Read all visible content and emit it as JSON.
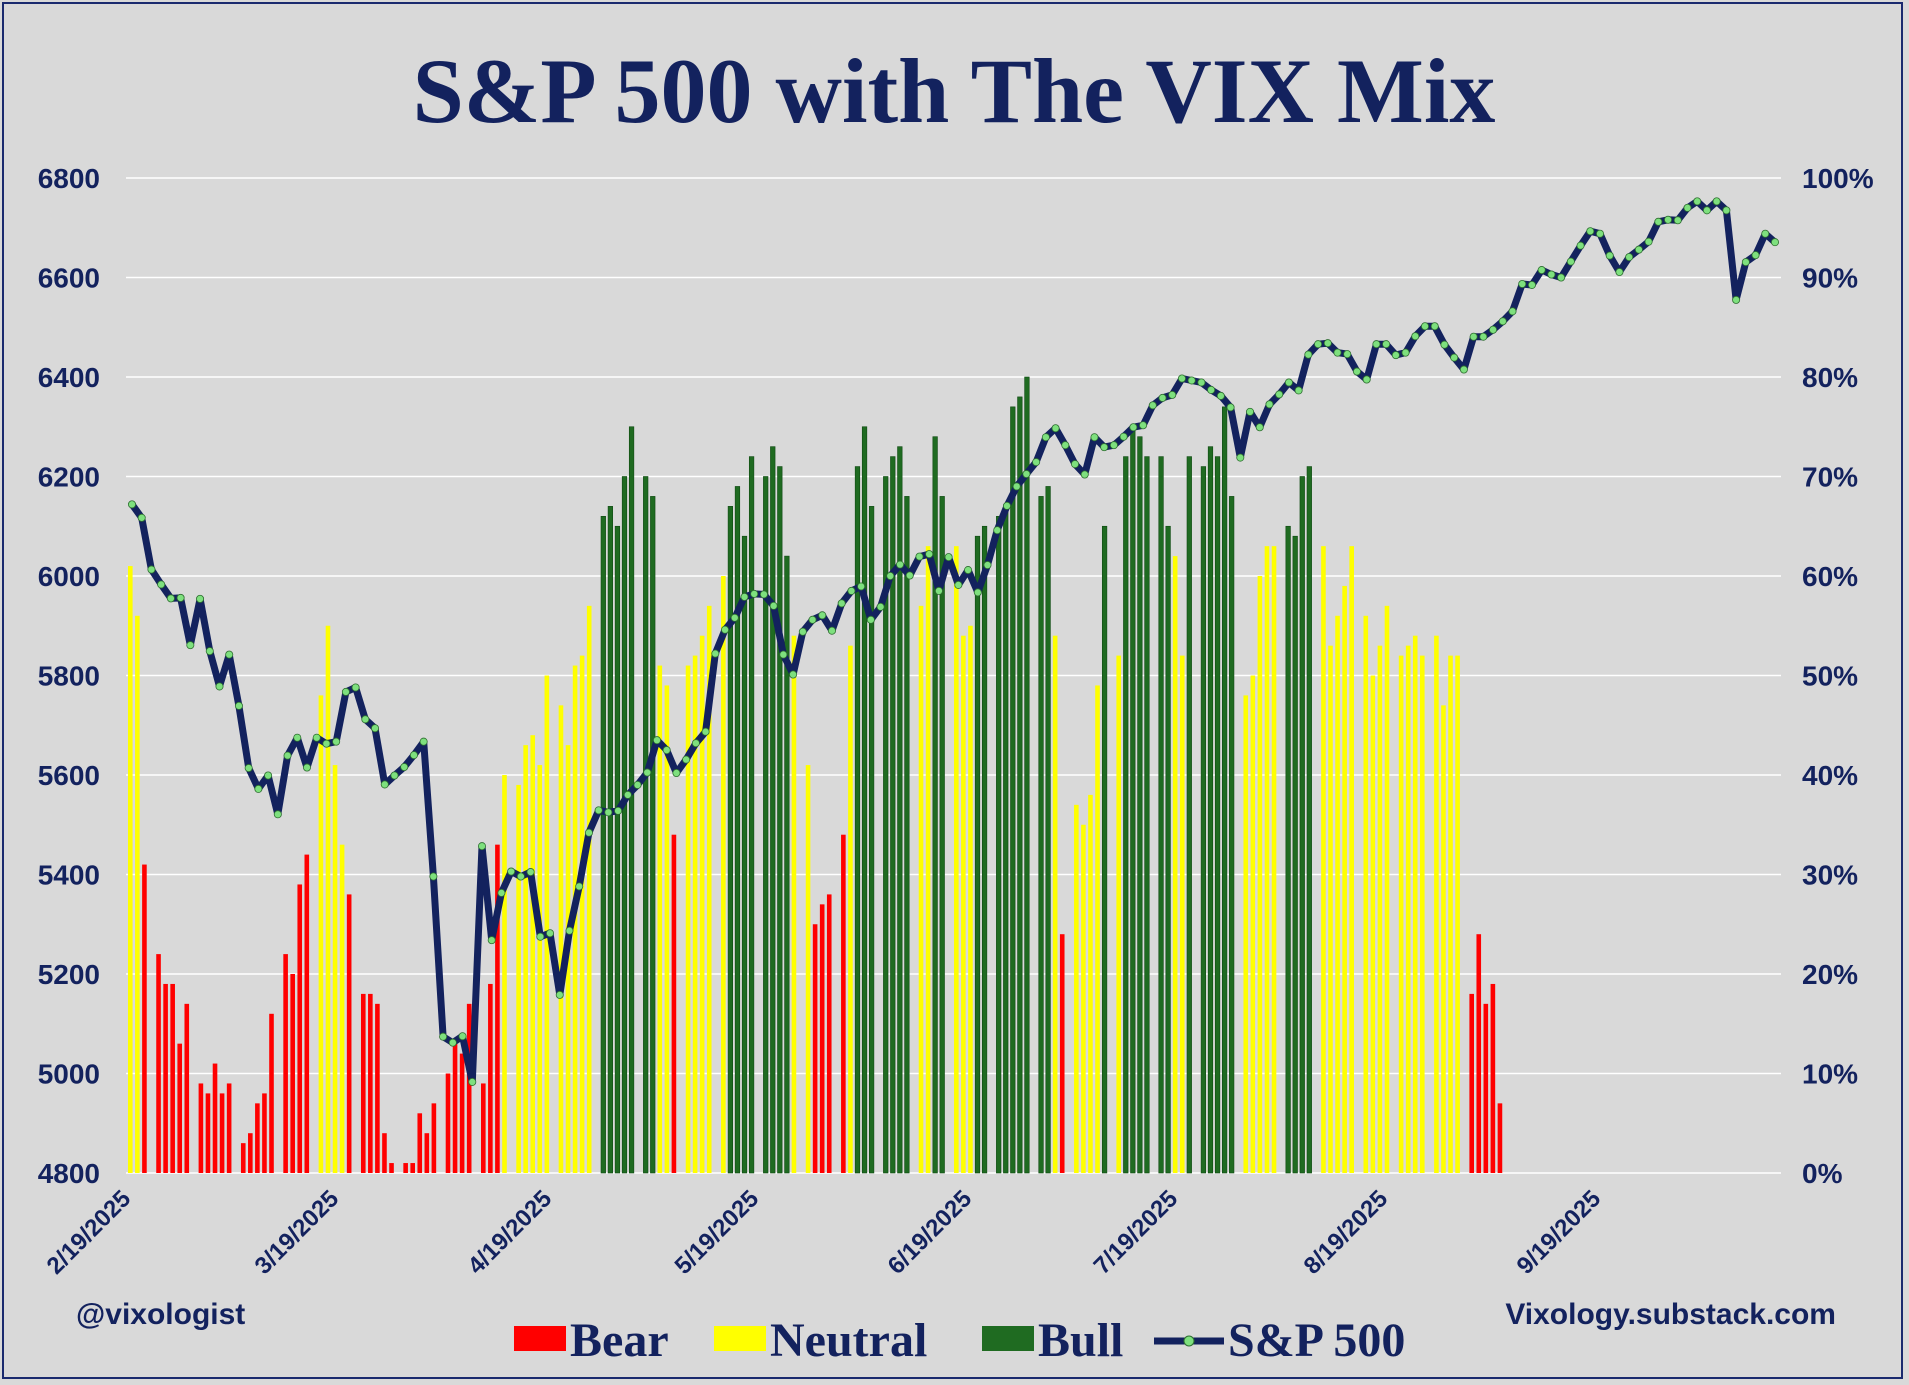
{
  "chart_data": {
    "type": "bar+line",
    "title": "S&P 500 with The VIX Mix",
    "y_left": {
      "range": [
        4800,
        6800
      ],
      "ticks": [
        "4800",
        "5000",
        "5200",
        "5400",
        "5600",
        "5800",
        "6000",
        "6200",
        "6400",
        "6600",
        "6800"
      ]
    },
    "y_right": {
      "range": [
        0,
        100
      ],
      "ticks": [
        "0%",
        "10%",
        "20%",
        "30%",
        "40%",
        "50%",
        "60%",
        "70%",
        "80%",
        "90%",
        "100%"
      ]
    },
    "x_ticks": [
      "2/19/2025",
      "3/19/2025",
      "4/19/2025",
      "5/19/2025",
      "6/19/2025",
      "7/19/2025",
      "8/19/2025",
      "9/19/2025"
    ],
    "legend": [
      "Bear",
      "Neutral",
      "Bull",
      "S&P 500"
    ],
    "colors": {
      "Bear": "#ff0000",
      "Neutral": "#ffff00",
      "Bull": "#1f6b21",
      "S&P 500": "#13225e",
      "marker": "#7ee07e"
    },
    "grid": true,
    "legend_position": "bottom",
    "series": [
      {
        "name": "S&P 500",
        "values": [
          6144,
          6117,
          6013,
          5983,
          5955,
          5956,
          5861,
          5954,
          5849,
          5778,
          5842,
          5739,
          5614,
          5572,
          5599,
          5521,
          5639,
          5675,
          5615,
          5675,
          5663,
          5667,
          5767,
          5776,
          5712,
          5694,
          5581,
          5599,
          5616,
          5640,
          5667,
          5396,
          5074,
          5062,
          5075,
          4983,
          5457,
          5268,
          5363,
          5406,
          5396,
          5405,
          5275,
          5282,
          5158,
          5287,
          5376,
          5484,
          5529,
          5525,
          5528,
          5560,
          5580,
          5605,
          5670,
          5650,
          5604,
          5631,
          5664,
          5687,
          5844,
          5892,
          5916,
          5958,
          5964,
          5963,
          5940,
          5842,
          5802,
          5888,
          5912,
          5921,
          5890,
          5945,
          5970,
          5979,
          5912,
          5938,
          6000,
          6023,
          6001,
          6039,
          6044,
          5970,
          6038,
          5982,
          6012,
          5967,
          6022,
          6092,
          6141,
          6180,
          6205,
          6229,
          6279,
          6297,
          6263,
          6225,
          6204,
          6279,
          6259,
          6263,
          6280,
          6299,
          6303,
          6343,
          6358,
          6364,
          6397,
          6393,
          6389,
          6374,
          6362,
          6339,
          6238,
          6330,
          6299,
          6345,
          6365,
          6389,
          6373,
          6445,
          6466,
          6468,
          6449,
          6446,
          6411,
          6395,
          6466,
          6466,
          6444,
          6449,
          6482,
          6502,
          6502,
          6465,
          6439,
          6415,
          6481,
          6481,
          6495,
          6512,
          6532,
          6587,
          6585,
          6615,
          6606,
          6600,
          6632,
          6664,
          6693,
          6688,
          6644,
          6611,
          6641,
          6656,
          6672,
          6712,
          6716,
          6715,
          6740,
          6753,
          6735,
          6753,
          6735,
          6555,
          6631,
          6645,
          6688,
          6671
        ]
      },
      {
        "name": "Bear",
        "values": [
          0,
          0,
          0,
          31,
          0,
          0,
          0,
          0,
          23,
          19,
          20,
          13,
          18,
          0,
          0,
          0,
          9,
          8,
          11,
          8,
          9,
          0,
          0,
          0,
          0,
          3,
          4,
          7,
          8,
          16,
          0,
          0,
          0,
          21,
          19,
          29,
          32,
          0,
          0,
          0,
          0,
          0,
          0,
          0,
          0,
          28,
          0,
          0,
          0,
          0,
          0,
          0,
          0,
          0,
          0,
          0,
          23,
          23,
          21,
          3,
          1,
          0,
          0,
          0,
          0,
          0,
          0,
          0,
          0,
          0,
          0,
          1,
          1,
          0,
          2,
          3,
          5,
          0,
          0,
          0,
          0,
          0,
          0,
          0,
          9,
          10,
          8,
          11,
          0,
          0,
          0,
          0,
          0,
          0,
          0,
          0,
          0,
          0,
          0,
          0,
          0,
          0,
          0,
          0,
          0,
          0,
          0,
          0,
          0,
          0,
          0,
          0,
          0,
          0,
          0,
          0,
          0,
          0,
          0,
          0,
          0,
          0,
          0,
          0,
          0,
          0,
          0,
          0,
          0,
          0,
          0,
          0,
          0,
          0,
          0,
          0,
          0,
          0,
          0,
          0,
          0,
          0,
          0,
          0,
          0,
          0,
          0,
          0,
          0,
          0,
          0,
          0,
          0,
          0,
          0,
          0,
          0,
          0,
          0,
          0,
          0,
          0,
          0,
          0,
          0,
          18,
          0,
          0,
          0,
          24,
          17,
          19,
          7
        ]
      }
    ],
    "bar_pattern": [
      [
        0.61,
        0.56,
        0.31
      ],
      [
        0.22,
        0.19,
        0.19,
        0.13,
        0.17
      ],
      [
        0.09,
        0.08,
        0.11,
        0.08,
        0.09
      ],
      [
        0.03,
        0.04,
        0.07,
        0.08,
        0.16
      ],
      [
        0.22,
        0.2,
        0.29,
        0.32
      ],
      [
        0.48,
        0.55,
        0.41,
        0.33,
        0.28
      ],
      [
        0.18,
        0.18,
        0.17,
        0.04,
        0.01
      ],
      [
        0.01,
        0.01,
        0.06,
        0.04,
        0.07
      ],
      [
        0.1,
        0.13,
        0.12,
        0.17
      ],
      [
        0.09,
        0.19,
        0.33,
        0.4
      ],
      [
        0.39,
        0.43,
        0.44,
        0.41,
        0.5
      ],
      [
        0.47,
        0.43,
        0.51,
        0.52,
        0.57
      ],
      [
        0.66,
        0.67,
        0.65,
        0.7,
        0.75
      ],
      [
        0.7,
        0.68,
        0.51,
        0.49,
        0.34
      ],
      [
        0.51,
        0.52,
        0.54,
        0.57
      ],
      [
        0.6,
        0.67,
        0.69,
        0.64,
        0.72
      ],
      [
        0.7,
        0.73,
        0.71,
        0.62,
        0.54
      ],
      [
        0.41,
        0.25,
        0.27,
        0.28
      ],
      [
        0.34,
        0.53,
        0.71,
        0.75,
        0.67
      ],
      [
        0.7,
        0.72,
        0.73,
        0.68
      ],
      [
        0.57,
        0.63,
        0.74,
        0.68
      ],
      [
        0.63,
        0.54,
        0.55,
        0.64,
        0.65
      ],
      [
        0.66,
        0.67,
        0.77,
        0.78,
        0.8
      ],
      [
        0.68,
        0.69,
        0.54,
        0.24
      ],
      [
        0.37,
        0.35,
        0.38,
        0.49,
        0.65
      ],
      [
        0.52,
        0.72,
        0.75,
        0.74,
        0.72
      ],
      [
        0.72,
        0.65,
        0.62,
        0.52,
        0.72
      ],
      [
        0.71,
        0.73,
        0.72,
        0.77,
        0.68
      ],
      [
        0.48,
        0.5,
        0.6,
        0.63,
        0.63
      ],
      [
        0.65,
        0.64,
        0.7,
        0.71
      ],
      [
        0.63,
        0.53,
        0.56,
        0.59,
        0.63
      ],
      [
        0.56,
        0.5,
        0.53,
        0.57
      ],
      [
        0.52,
        0.53,
        0.54,
        0.52
      ],
      [
        0.54,
        0.47,
        0.52,
        0.52
      ],
      [
        0.18,
        0.24,
        0.17,
        0.19,
        0.07
      ]
    ],
    "bar_types": [
      [
        "n",
        "n",
        "b"
      ],
      [
        "b",
        "b",
        "b",
        "b",
        "b"
      ],
      [
        "b",
        "b",
        "b",
        "b",
        "b"
      ],
      [
        "b",
        "b",
        "b",
        "b",
        "b"
      ],
      [
        "b",
        "b",
        "b",
        "b"
      ],
      [
        "n",
        "n",
        "n",
        "n",
        "b"
      ],
      [
        "b",
        "b",
        "b",
        "b",
        "b"
      ],
      [
        "b",
        "b",
        "b",
        "b",
        "b"
      ],
      [
        "b",
        "b",
        "b",
        "b"
      ],
      [
        "b",
        "b",
        "b",
        "n"
      ],
      [
        "n",
        "n",
        "n",
        "n",
        "n"
      ],
      [
        "n",
        "n",
        "n",
        "n",
        "n"
      ],
      [
        "g",
        "g",
        "g",
        "g",
        "g"
      ],
      [
        "g",
        "g",
        "n",
        "n",
        "b"
      ],
      [
        "n",
        "n",
        "n",
        "n"
      ],
      [
        "n",
        "g",
        "g",
        "g",
        "g"
      ],
      [
        "g",
        "g",
        "g",
        "g",
        "n"
      ],
      [
        "n",
        "b",
        "b",
        "b"
      ],
      [
        "b",
        "n",
        "g",
        "g",
        "g"
      ],
      [
        "g",
        "g",
        "g",
        "g"
      ],
      [
        "n",
        "n",
        "g",
        "g"
      ],
      [
        "n",
        "n",
        "n",
        "g",
        "g"
      ],
      [
        "g",
        "g",
        "g",
        "g",
        "g"
      ],
      [
        "g",
        "g",
        "n",
        "b"
      ],
      [
        "n",
        "n",
        "n",
        "n",
        "g"
      ],
      [
        "n",
        "g",
        "g",
        "g",
        "g"
      ],
      [
        "g",
        "g",
        "n",
        "n",
        "g"
      ],
      [
        "g",
        "g",
        "g",
        "g",
        "g"
      ],
      [
        "n",
        "n",
        "n",
        "n",
        "n"
      ],
      [
        "g",
        "g",
        "g",
        "g"
      ],
      [
        "n",
        "n",
        "n",
        "n",
        "n"
      ],
      [
        "n",
        "n",
        "n",
        "n"
      ],
      [
        "n",
        "n",
        "n",
        "n"
      ],
      [
        "n",
        "n",
        "n",
        "n"
      ],
      [
        "b",
        "b",
        "b",
        "b",
        "b"
      ]
    ]
  },
  "footer": {
    "left": "@vixologist",
    "right": "Vixology.substack.com"
  }
}
